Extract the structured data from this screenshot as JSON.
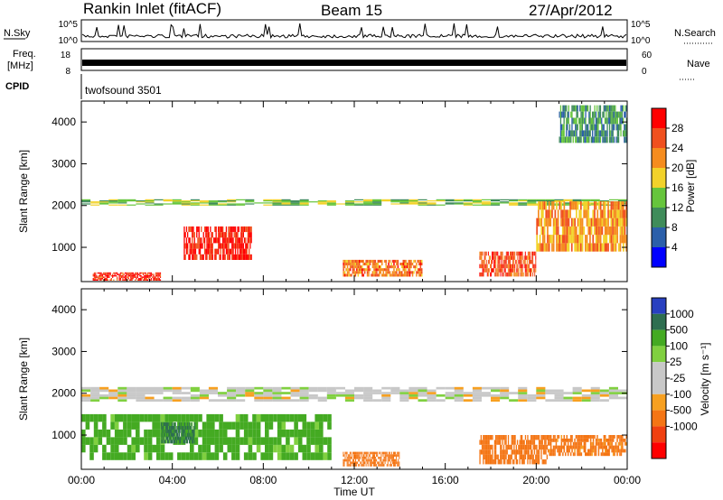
{
  "header": {
    "station": "Rankin Inlet (fitACF)",
    "beam": "Beam 15",
    "date": "27/Apr/2012"
  },
  "noise_panel": {
    "left_label": "N.Sky",
    "left_ticks": [
      "10^5",
      "10^0"
    ],
    "right_ticks": [
      "10^5",
      "10^0"
    ],
    "right_label": "N.Search"
  },
  "freq_panel": {
    "left_label_line1": "Freq.",
    "left_label_line2": "[MHz]",
    "left_ticks": [
      "18",
      "8"
    ],
    "right_ticks": [
      "60",
      "0"
    ],
    "right_label": "Nave"
  },
  "cpid_panel": {
    "label": "CPID",
    "value": "twofsound 3501"
  },
  "x_axis": {
    "label": "Time UT",
    "ticks": [
      "00:00",
      "04:00",
      "08:00",
      "12:00",
      "16:00",
      "20:00",
      "00:00"
    ]
  },
  "power_panel": {
    "ylabel": "Slant Range [km]",
    "yticks": [
      "4000",
      "3000",
      "2000",
      "1000"
    ],
    "cbar_label": "Power [dB]",
    "cbar_ticks": [
      "28",
      "24",
      "20",
      "16",
      "12",
      "8",
      "4"
    ]
  },
  "velocity_panel": {
    "ylabel": "Slant Range [km]",
    "yticks": [
      "4000",
      "3000",
      "2000",
      "1000"
    ],
    "cbar_label": "Velocity [m s⁻¹]",
    "cbar_ticks": [
      "1000",
      "500",
      "100",
      "25",
      "-25",
      "-100",
      "-500",
      "-1000"
    ]
  },
  "colors": {
    "power_scale": [
      "#0000ff",
      "#2b5faa",
      "#3f8c5a",
      "#66c53c",
      "#f2d22a",
      "#f58c1e",
      "#f0501e",
      "#ff0000"
    ],
    "velocity_scale": [
      "#2840c0",
      "#2e6e50",
      "#44aa22",
      "#80d040",
      "#c8c8c8",
      "#c8c8c8",
      "#f7a020",
      "#f47514",
      "#f04010",
      "#ff0000"
    ]
  },
  "chart_data": [
    {
      "type": "heatmap",
      "title": "Power",
      "xlabel": "Time UT",
      "ylabel": "Slant Range [km]",
      "xlim": [
        0,
        24
      ],
      "ylim": [
        180,
        4500
      ],
      "colorbar": {
        "label": "Power [dB]",
        "range": [
          0,
          32
        ],
        "ticks": [
          4,
          8,
          12,
          16,
          20,
          24,
          28
        ]
      },
      "regions": [
        {
          "t": [
            0,
            24
          ],
          "r": [
            2000,
            2150
          ],
          "level": 14
        },
        {
          "t": [
            0.5,
            3.5
          ],
          "r": [
            200,
            400
          ],
          "level": 28
        },
        {
          "t": [
            4.5,
            7.5
          ],
          "r": [
            700,
            1500
          ],
          "level": 29
        },
        {
          "t": [
            11.5,
            15
          ],
          "r": [
            300,
            700
          ],
          "level": 24
        },
        {
          "t": [
            17.5,
            20
          ],
          "r": [
            300,
            900
          ],
          "level": 26
        },
        {
          "t": [
            20,
            24
          ],
          "r": [
            900,
            2100
          ],
          "level": 22
        },
        {
          "t": [
            21,
            24
          ],
          "r": [
            3500,
            4400
          ],
          "level": 10
        }
      ]
    },
    {
      "type": "heatmap",
      "title": "Velocity",
      "xlabel": "Time UT",
      "ylabel": "Slant Range [km]",
      "xlim": [
        0,
        24
      ],
      "ylim": [
        180,
        4500
      ],
      "colorbar": {
        "label": "Velocity [m s⁻¹]",
        "range": [
          -1000,
          1000
        ],
        "ticks": [
          1000,
          500,
          100,
          25,
          -25,
          -100,
          -500,
          -1000
        ]
      },
      "regions": [
        {
          "t": [
            0,
            24
          ],
          "r": [
            1800,
            2150
          ],
          "level": 0
        },
        {
          "t": [
            0,
            11
          ],
          "r": [
            400,
            1500
          ],
          "level": 150
        },
        {
          "t": [
            3.5,
            5
          ],
          "r": [
            800,
            1300
          ],
          "level": 600
        },
        {
          "t": [
            11.5,
            14
          ],
          "r": [
            250,
            600
          ],
          "level": -300
        },
        {
          "t": [
            17.5,
            20.5
          ],
          "r": [
            300,
            1000
          ],
          "level": -200
        },
        {
          "t": [
            20.5,
            24
          ],
          "r": [
            500,
            1000
          ],
          "level": -150
        }
      ]
    }
  ]
}
